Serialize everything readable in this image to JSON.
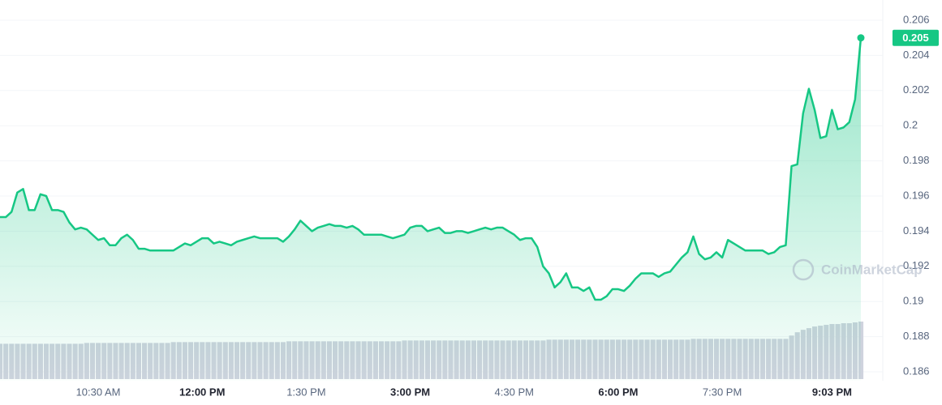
{
  "chart_data": {
    "type": "area",
    "watermark": "CoinMarketCap",
    "color": "#16c784",
    "volume_color": "#cfd3de",
    "grid": true,
    "ylim": [
      0.186,
      0.206
    ],
    "yticks": [
      0.186,
      0.188,
      0.19,
      0.192,
      0.194,
      0.196,
      0.198,
      0.2,
      0.202,
      0.204,
      0.206
    ],
    "categories": [
      null,
      null,
      null,
      null,
      null,
      null,
      null,
      null,
      null,
      null,
      null,
      null,
      null,
      null,
      null,
      null,
      null,
      "10:30 AM",
      null,
      null,
      null,
      null,
      null,
      null,
      null,
      null,
      null,
      null,
      null,
      null,
      null,
      null,
      null,
      null,
      null,
      "12:00 PM",
      null,
      null,
      null,
      null,
      null,
      null,
      null,
      null,
      null,
      null,
      null,
      null,
      null,
      null,
      null,
      null,
      null,
      "1:30 PM",
      null,
      null,
      null,
      null,
      null,
      null,
      null,
      null,
      null,
      null,
      null,
      null,
      null,
      null,
      null,
      null,
      null,
      "3:00 PM",
      null,
      null,
      null,
      null,
      null,
      null,
      null,
      null,
      null,
      null,
      null,
      null,
      null,
      null,
      null,
      null,
      null,
      "4:30 PM",
      null,
      null,
      null,
      null,
      null,
      null,
      null,
      null,
      null,
      null,
      null,
      null,
      null,
      null,
      null,
      null,
      null,
      "6:00 PM",
      null,
      null,
      null,
      null,
      null,
      null,
      null,
      null,
      null,
      null,
      null,
      null,
      null,
      null,
      null,
      null,
      null,
      "7:30 PM",
      null,
      null,
      null,
      null,
      null,
      null,
      null,
      null,
      null,
      null,
      null,
      null,
      null,
      null,
      null,
      null,
      null,
      null,
      "9:03 PM",
      null,
      null,
      null,
      null,
      null
    ],
    "values": [
      0.1948,
      0.1948,
      0.1951,
      0.1962,
      0.1964,
      0.1952,
      0.1952,
      0.1961,
      0.196,
      0.1952,
      0.1952,
      0.1951,
      0.1945,
      0.1941,
      0.1942,
      0.1941,
      0.1938,
      0.1935,
      0.1936,
      0.1932,
      0.1932,
      0.1936,
      0.1938,
      0.1935,
      0.193,
      0.193,
      0.1929,
      0.1929,
      0.1929,
      0.1929,
      0.1929,
      0.1931,
      0.1933,
      0.1932,
      0.1934,
      0.1936,
      0.1936,
      0.1933,
      0.1934,
      0.1933,
      0.1932,
      0.1934,
      0.1935,
      0.1936,
      0.1937,
      0.1936,
      0.1936,
      0.1936,
      0.1936,
      0.1934,
      0.1937,
      0.1941,
      0.1946,
      0.1943,
      0.194,
      0.1942,
      0.1943,
      0.1944,
      0.1943,
      0.1943,
      0.1942,
      0.1943,
      0.1941,
      0.1938,
      0.1938,
      0.1938,
      0.1938,
      0.1937,
      0.1936,
      0.1937,
      0.1938,
      0.1942,
      0.1943,
      0.1943,
      0.194,
      0.1941,
      0.1942,
      0.1939,
      0.1939,
      0.194,
      0.194,
      0.1939,
      0.194,
      0.1941,
      0.1942,
      0.1941,
      0.1942,
      0.1942,
      0.194,
      0.1938,
      0.1935,
      0.1936,
      0.1936,
      0.1931,
      0.192,
      0.1916,
      0.1908,
      0.1911,
      0.1916,
      0.1908,
      0.1908,
      0.1906,
      0.1908,
      0.1901,
      0.1901,
      0.1903,
      0.1907,
      0.1907,
      0.1906,
      0.1909,
      0.1913,
      0.1916,
      0.1916,
      0.1916,
      0.1914,
      0.1916,
      0.1917,
      0.1921,
      0.1925,
      0.1928,
      0.1937,
      0.1927,
      0.1924,
      0.1925,
      0.1928,
      0.1925,
      0.1935,
      0.1933,
      0.1931,
      0.1929,
      0.1929,
      0.1929,
      0.1929,
      0.1927,
      0.1928,
      0.1931,
      0.1932,
      0.1977,
      0.1978,
      0.2007,
      0.2021,
      0.2009,
      0.1993,
      0.1994,
      0.2009,
      0.1998,
      0.1999,
      0.2002,
      0.2015,
      0.205
    ],
    "volume": [
      43,
      43,
      43,
      43,
      43,
      43,
      43,
      43,
      43,
      43,
      43,
      43,
      43,
      43,
      43,
      44,
      44,
      44,
      44,
      44,
      44,
      44,
      44,
      44,
      44,
      44,
      44,
      44,
      44,
      44,
      45,
      45,
      45,
      45,
      45,
      45,
      45,
      45,
      45,
      45,
      45,
      45,
      45,
      45,
      45,
      45,
      45,
      45,
      45,
      45,
      46,
      46,
      46,
      46,
      46,
      46,
      46,
      46,
      46,
      46,
      46,
      46,
      46,
      46,
      46,
      46,
      46,
      46,
      46,
      46,
      47,
      47,
      47,
      47,
      47,
      47,
      47,
      47,
      47,
      47,
      47,
      47,
      47,
      47,
      47,
      47,
      47,
      47,
      47,
      47,
      47,
      47,
      47,
      47,
      47,
      48,
      48,
      48,
      48,
      48,
      48,
      48,
      48,
      48,
      48,
      48,
      48,
      48,
      48,
      48,
      48,
      48,
      48,
      48,
      48,
      48,
      48,
      48,
      48,
      48,
      49,
      49,
      49,
      49,
      49,
      49,
      49,
      49,
      49,
      49,
      49,
      49,
      49,
      49,
      49,
      49,
      49,
      53,
      57,
      60,
      62,
      64,
      65,
      66,
      67,
      67,
      68,
      68,
      69,
      70
    ]
  }
}
